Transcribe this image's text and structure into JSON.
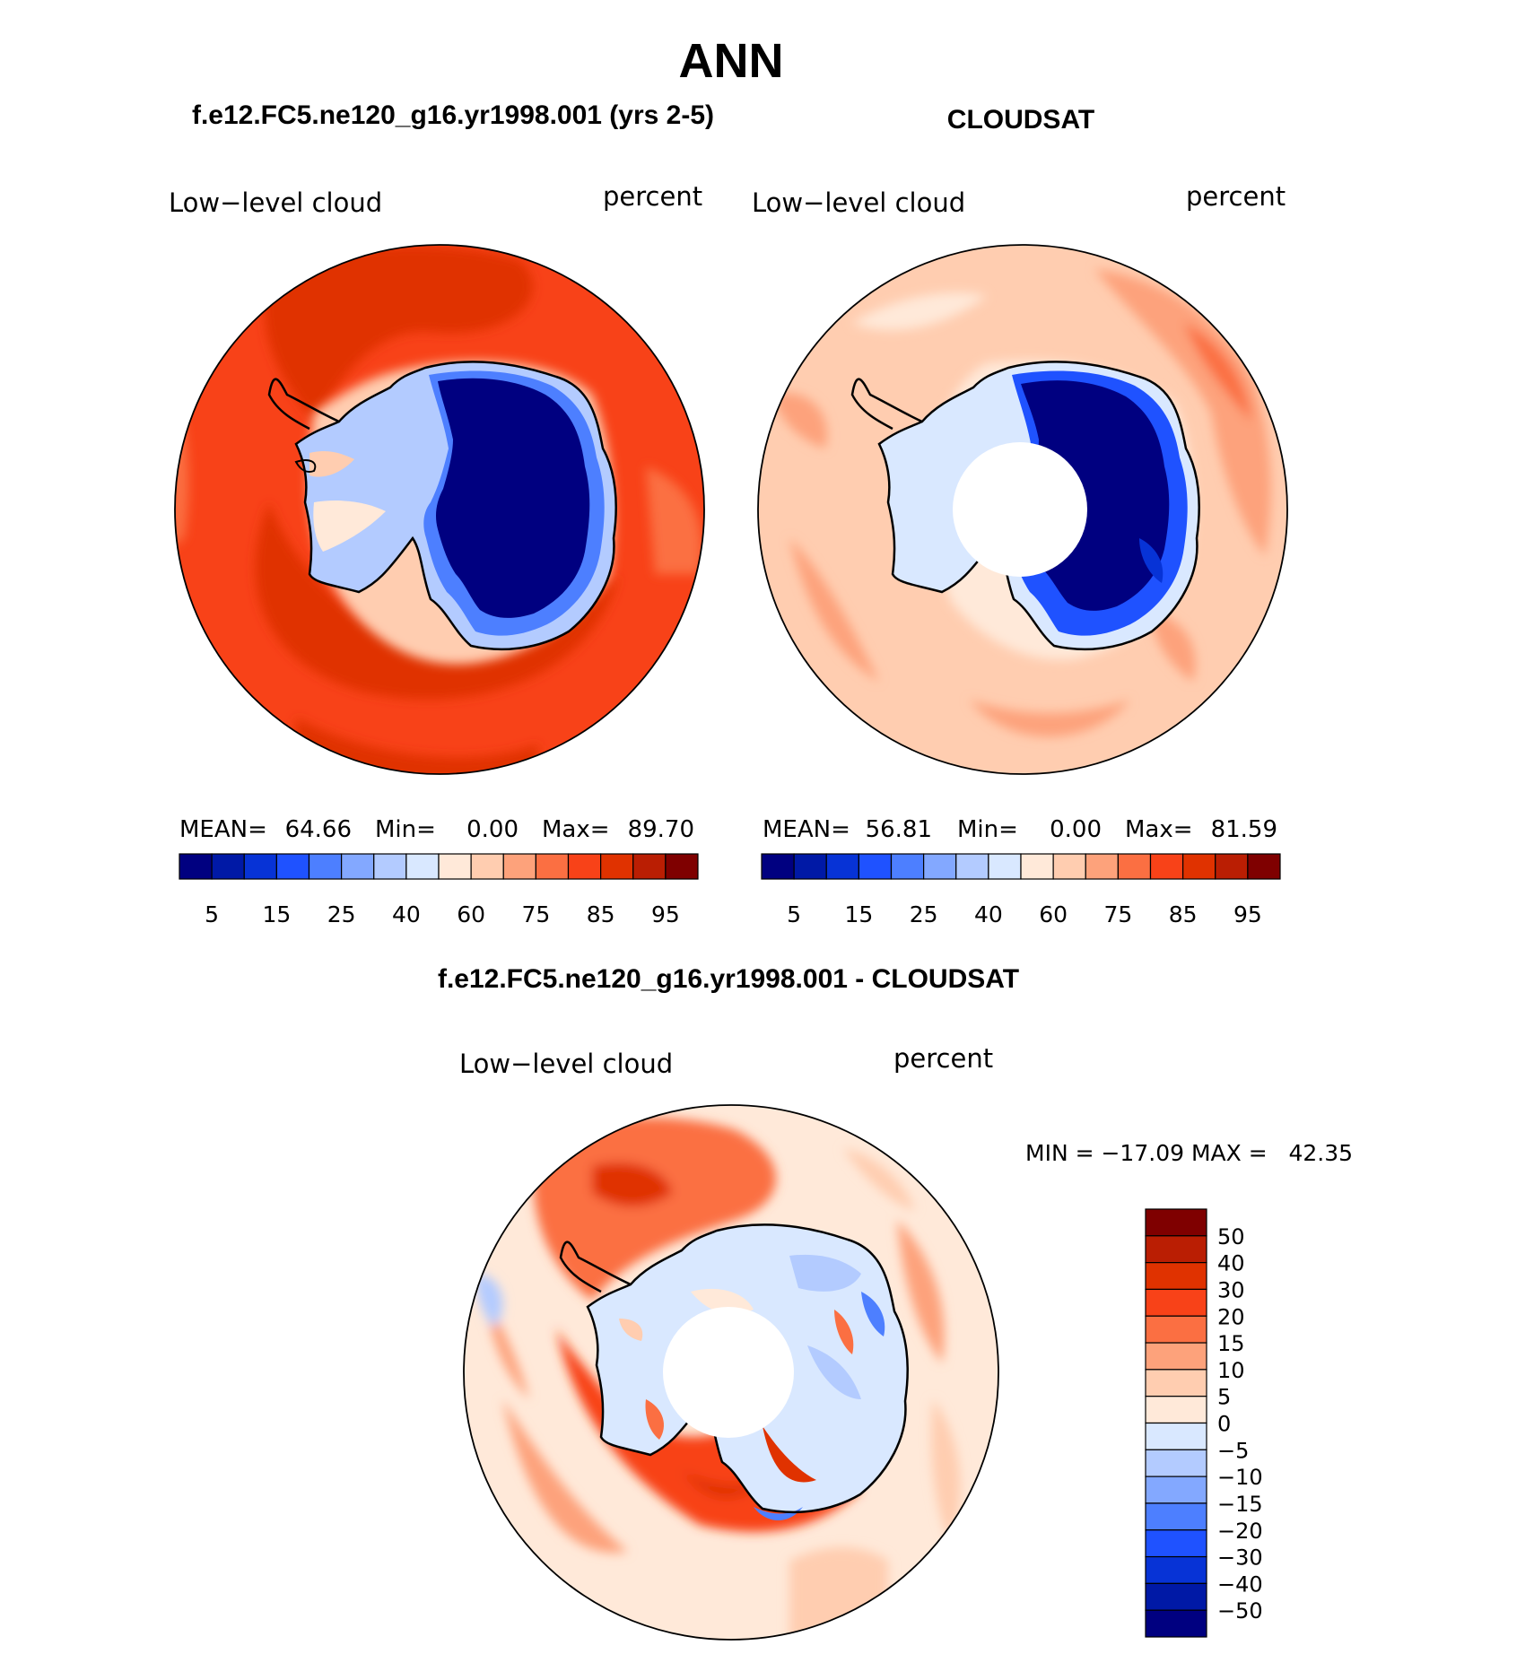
{
  "figure": {
    "season": "ANN",
    "bottom_title": "f.e12.FC5.ne120_g16.yr1998.001 - CLOUDSAT"
  },
  "panels": [
    {
      "title": "f.e12.FC5.ne120_g16.yr1998.001 (yrs 2-5)",
      "left_label": "Low−level cloud",
      "right_label": "percent",
      "mean_label": "MEAN=",
      "mean": "64.66",
      "min_label": "Min=",
      "min": "0.00",
      "max_label": "Max=",
      "max": "89.70"
    },
    {
      "title": "CLOUDSAT",
      "left_label": "Low−level cloud",
      "right_label": "percent",
      "mean_label": "MEAN=",
      "mean": "56.81",
      "min_label": "Min=",
      "min": "0.00",
      "max_label": "Max=",
      "max": "81.59"
    }
  ],
  "diff_panel": {
    "left_label": "Low−level cloud",
    "right_label": "percent",
    "minmax_text": "MIN = −17.09 MAX =   42.35"
  },
  "colorbar_abs": {
    "colors": [
      "#000080",
      "#0019a6",
      "#0733d6",
      "#1f52ff",
      "#4d7fff",
      "#83a8ff",
      "#b3cbff",
      "#d9e8ff",
      "#ffe9d9",
      "#ffcdb0",
      "#fda27b",
      "#fb6f42",
      "#f84218",
      "#e03200",
      "#ba1e03",
      "#7f0000"
    ],
    "tick_labels": [
      "5",
      "15",
      "25",
      "40",
      "60",
      "75",
      "85",
      "95"
    ]
  },
  "colorbar_diff": {
    "colors": [
      "#7f0000",
      "#ba1e03",
      "#e03200",
      "#f84218",
      "#fb6f42",
      "#fda27b",
      "#ffcdb0",
      "#ffe9d9",
      "#d9e8ff",
      "#b3cbff",
      "#83a8ff",
      "#4d7fff",
      "#1f52ff",
      "#0733d6",
      "#0019a6",
      "#000080"
    ],
    "tick_labels": [
      "50",
      "40",
      "30",
      "20",
      "15",
      "10",
      "5",
      "0",
      "−5",
      "−10",
      "−15",
      "−20",
      "−30",
      "−40",
      "−50"
    ]
  }
}
